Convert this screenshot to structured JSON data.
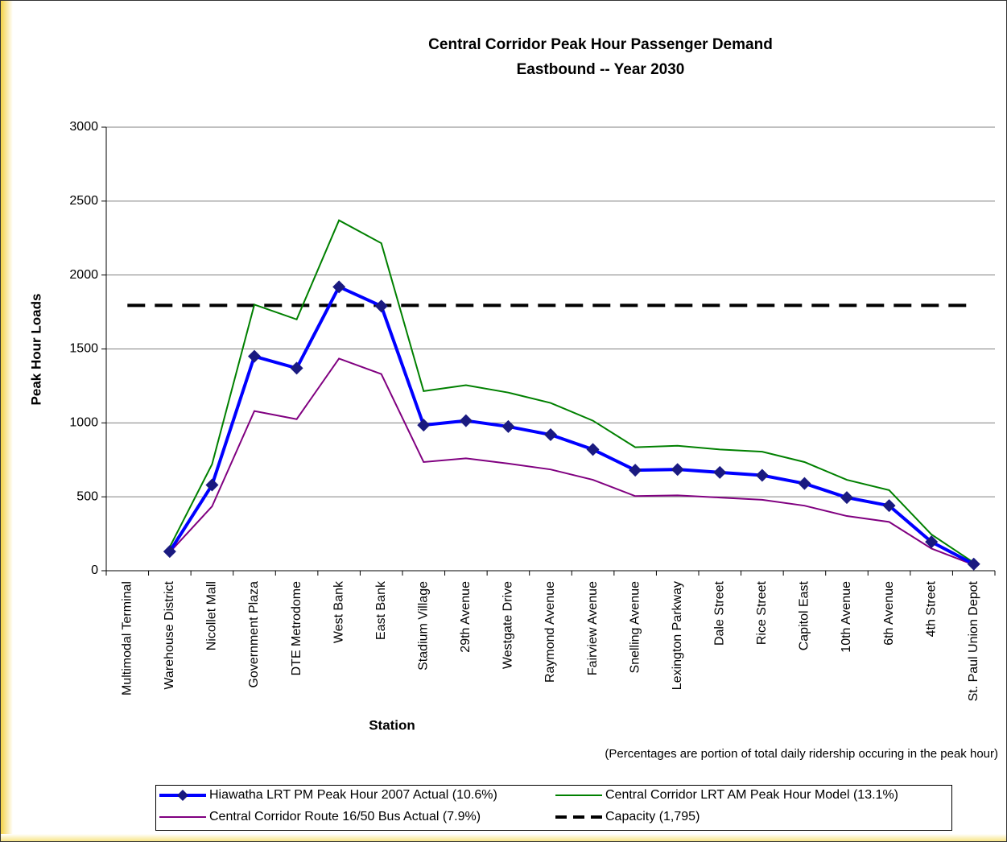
{
  "chart_data": {
    "type": "line",
    "title": "Central Corridor Peak Hour Passenger Demand",
    "subtitle": "Eastbound -- Year 2030",
    "x_label": "Station",
    "y_label": "Peak Hour Loads",
    "note": "(Percentages are portion of total daily ridership occuring in the peak hour)",
    "categories": [
      "Multimodal Terminal",
      "Warehouse District",
      "Nicollet Mall",
      "Government Plaza",
      "DTE Metrodome",
      "West Bank",
      "East Bank",
      "Stadium Village",
      "29th Avenue",
      "Westgate Drive",
      "Raymond Avenue",
      "Fairview Avenue",
      "Snelling Avenue",
      "Lexington Parkway",
      "Dale Street",
      "Rice Street",
      "Capitol East",
      "10th Avenue",
      "6th Avenue",
      "4th Street",
      "St. Paul Union Depot"
    ],
    "series": [
      {
        "name": "Hiawatha LRT PM Peak Hour 2007 Actual (10.6%)",
        "color": "#0000ff",
        "marker": "diamond",
        "marker_color": "#1a1a80",
        "values": [
          null,
          130,
          580,
          1450,
          1370,
          1920,
          1790,
          985,
          1015,
          975,
          920,
          820,
          680,
          685,
          665,
          645,
          590,
          495,
          440,
          195,
          45
        ]
      },
      {
        "name": "Central Corridor LRT AM Peak Hour Model (13.1%)",
        "color": "#008000",
        "values": [
          null,
          160,
          720,
          1800,
          1700,
          2370,
          2215,
          1215,
          1255,
          1205,
          1135,
          1015,
          835,
          845,
          820,
          805,
          735,
          615,
          545,
          245,
          55
        ]
      },
      {
        "name": "Central Corridor Route 16/50 Bus Actual (7.9%)",
        "color": "#800080",
        "values": [
          null,
          125,
          435,
          1080,
          1025,
          1435,
          1330,
          735,
          760,
          725,
          685,
          615,
          505,
          510,
          495,
          480,
          440,
          370,
          330,
          150,
          40
        ]
      },
      {
        "name": "Capacity (1,795)",
        "color": "#000000",
        "dashed": true,
        "values": [
          1795,
          1795,
          1795,
          1795,
          1795,
          1795,
          1795,
          1795,
          1795,
          1795,
          1795,
          1795,
          1795,
          1795,
          1795,
          1795,
          1795,
          1795,
          1795,
          1795,
          1795
        ]
      }
    ],
    "ylim": [
      0,
      3000
    ],
    "yticks": [
      0,
      500,
      1000,
      1500,
      2000,
      2500,
      3000
    ],
    "grid": true
  }
}
